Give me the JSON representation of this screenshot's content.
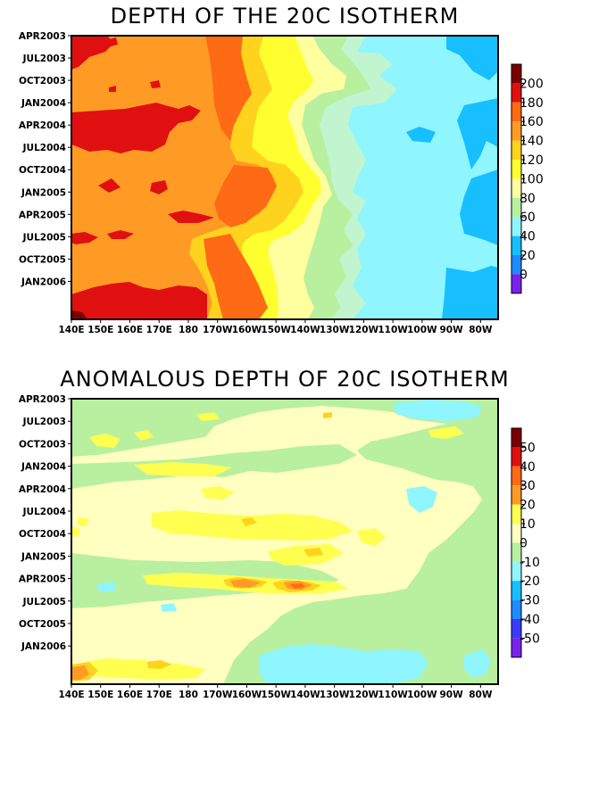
{
  "colors": {
    "c_neg60": "#7a22ee",
    "c_neg50_40": "#3b3bff",
    "c_neg40_30": "#1e8cff",
    "c_neg30_20": "#18bfff",
    "c_neg20_10": "#8ff5ff",
    "c_neg10_0": "#b8f0a0",
    "c_0_10": "#ffffc0",
    "c_10_20": "#ffff50",
    "c_20_30": "#ffd21e",
    "c_30_40": "#ff9b24",
    "c_40_50": "#ff6a14",
    "c_50_plus": "#e01010",
    "c_top": "#7a0000",
    "d_0_20": "#1e8cff",
    "d_20_40": "#18bfff",
    "d_40_60": "#8ff5ff",
    "d_60_80": "#c0f5d0",
    "d_80_100": "#b8f0a0",
    "d_100_120": "#ffffa0",
    "d_120_140": "#ffff30",
    "d_140_160": "#ffd21e",
    "d_160_180": "#ff9b24",
    "d_180_200": "#ff6a14",
    "d_200_plus": "#e01010"
  },
  "chart_data": [
    {
      "type": "heatmap",
      "title": "DEPTH OF THE 20C ISOTHERM",
      "x_tick_labels": [
        "140E",
        "150E",
        "160E",
        "170E",
        "180",
        "170W",
        "160W",
        "150W",
        "140W",
        "130W",
        "120W",
        "110W",
        "100W",
        "90W",
        "80W"
      ],
      "y_tick_labels": [
        "APR2003",
        "JUL2003",
        "OCT2003",
        "JAN2004",
        "APR2004",
        "JUL2004",
        "OCT2004",
        "JAN2005",
        "APR2005",
        "JUL2005",
        "OCT2005",
        "JAN2006"
      ],
      "colorbar_labels": [
        "200",
        "180",
        "160",
        "140",
        "120",
        "100",
        "80",
        "60",
        "40",
        "20",
        "0"
      ],
      "colorbar_levels": [
        0,
        20,
        40,
        60,
        80,
        100,
        120,
        140,
        160,
        180,
        200
      ],
      "xlim": [
        "140E",
        "80W"
      ],
      "ylim": [
        "APR2003",
        "FEB2006"
      ],
      "approx_profile_by_longitude": {
        "longitude": [
          "140E",
          "160E",
          "180",
          "170W",
          "160W",
          "150W",
          "140W",
          "130W",
          "120W",
          "110W",
          "100W",
          "90W",
          "80W"
        ],
        "depth_m": [
          175,
          165,
          165,
          160,
          145,
          125,
          110,
          90,
          60,
          45,
          40,
          40,
          40
        ]
      }
    },
    {
      "type": "heatmap",
      "title": "ANOMALOUS DEPTH OF 20C ISOTHERM",
      "x_tick_labels": [
        "140E",
        "150E",
        "160E",
        "170E",
        "180",
        "170W",
        "160W",
        "150W",
        "140W",
        "130W",
        "120W",
        "110W",
        "100W",
        "90W",
        "80W"
      ],
      "y_tick_labels": [
        "APR2003",
        "JUL2003",
        "OCT2003",
        "JAN2004",
        "APR2004",
        "JUL2004",
        "OCT2004",
        "JAN2005",
        "APR2005",
        "JUL2005",
        "OCT2005",
        "JAN2006"
      ],
      "colorbar_labels": [
        "50",
        "40",
        "30",
        "20",
        "10",
        "0",
        "-10",
        "-20",
        "-30",
        "-40",
        "-50"
      ],
      "colorbar_levels": [
        -50,
        -40,
        -30,
        -20,
        -10,
        0,
        10,
        20,
        30,
        40,
        50
      ],
      "xlim": [
        "140E",
        "80W"
      ],
      "ylim": [
        "APR2003",
        "FEB2006"
      ],
      "approx_features": [
        {
          "time": "APR2005",
          "longitude": "160W-130W",
          "anomaly_m": 30
        },
        {
          "time": "JAN2006",
          "longitude": "140E",
          "anomaly_m": 30
        },
        {
          "time": "JAN2006",
          "longitude": "150W-110W",
          "anomaly_m": -20
        }
      ]
    }
  ]
}
